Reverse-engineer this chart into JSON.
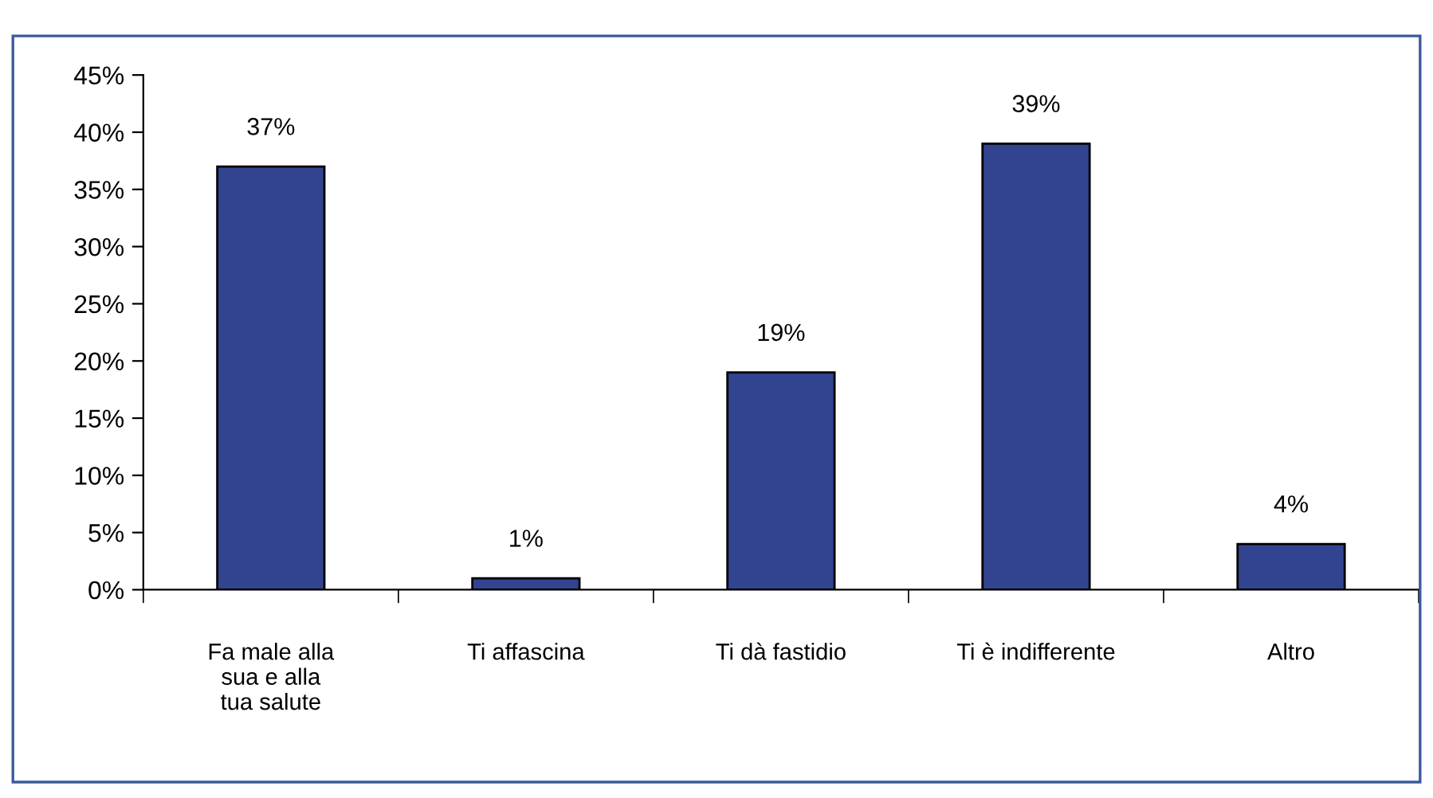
{
  "chart_data": {
    "type": "bar",
    "categories": [
      "Fa male alla\nsua e alla\ntua salute",
      "Ti affascina",
      "Ti dà fastidio",
      "Ti è indifferente",
      "Altro"
    ],
    "values": [
      37,
      1,
      19,
      39,
      4
    ],
    "color": "#32438f",
    "value_labels": [
      "37%",
      "1%",
      "19%",
      "39%",
      "4%"
    ],
    "ylim": [
      0,
      45
    ],
    "yticks": [
      {
        "value": 0,
        "label": "0%"
      },
      {
        "value": 5,
        "label": "5%"
      },
      {
        "value": 10,
        "label": "10%"
      },
      {
        "value": 15,
        "label": "15%"
      },
      {
        "value": 20,
        "label": "20%"
      },
      {
        "value": 25,
        "label": "25%"
      },
      {
        "value": 30,
        "label": "30%"
      },
      {
        "value": 35,
        "label": "35%"
      },
      {
        "value": 40,
        "label": "40%"
      },
      {
        "value": 45,
        "label": "45%"
      }
    ],
    "grid": false,
    "legend": false
  }
}
